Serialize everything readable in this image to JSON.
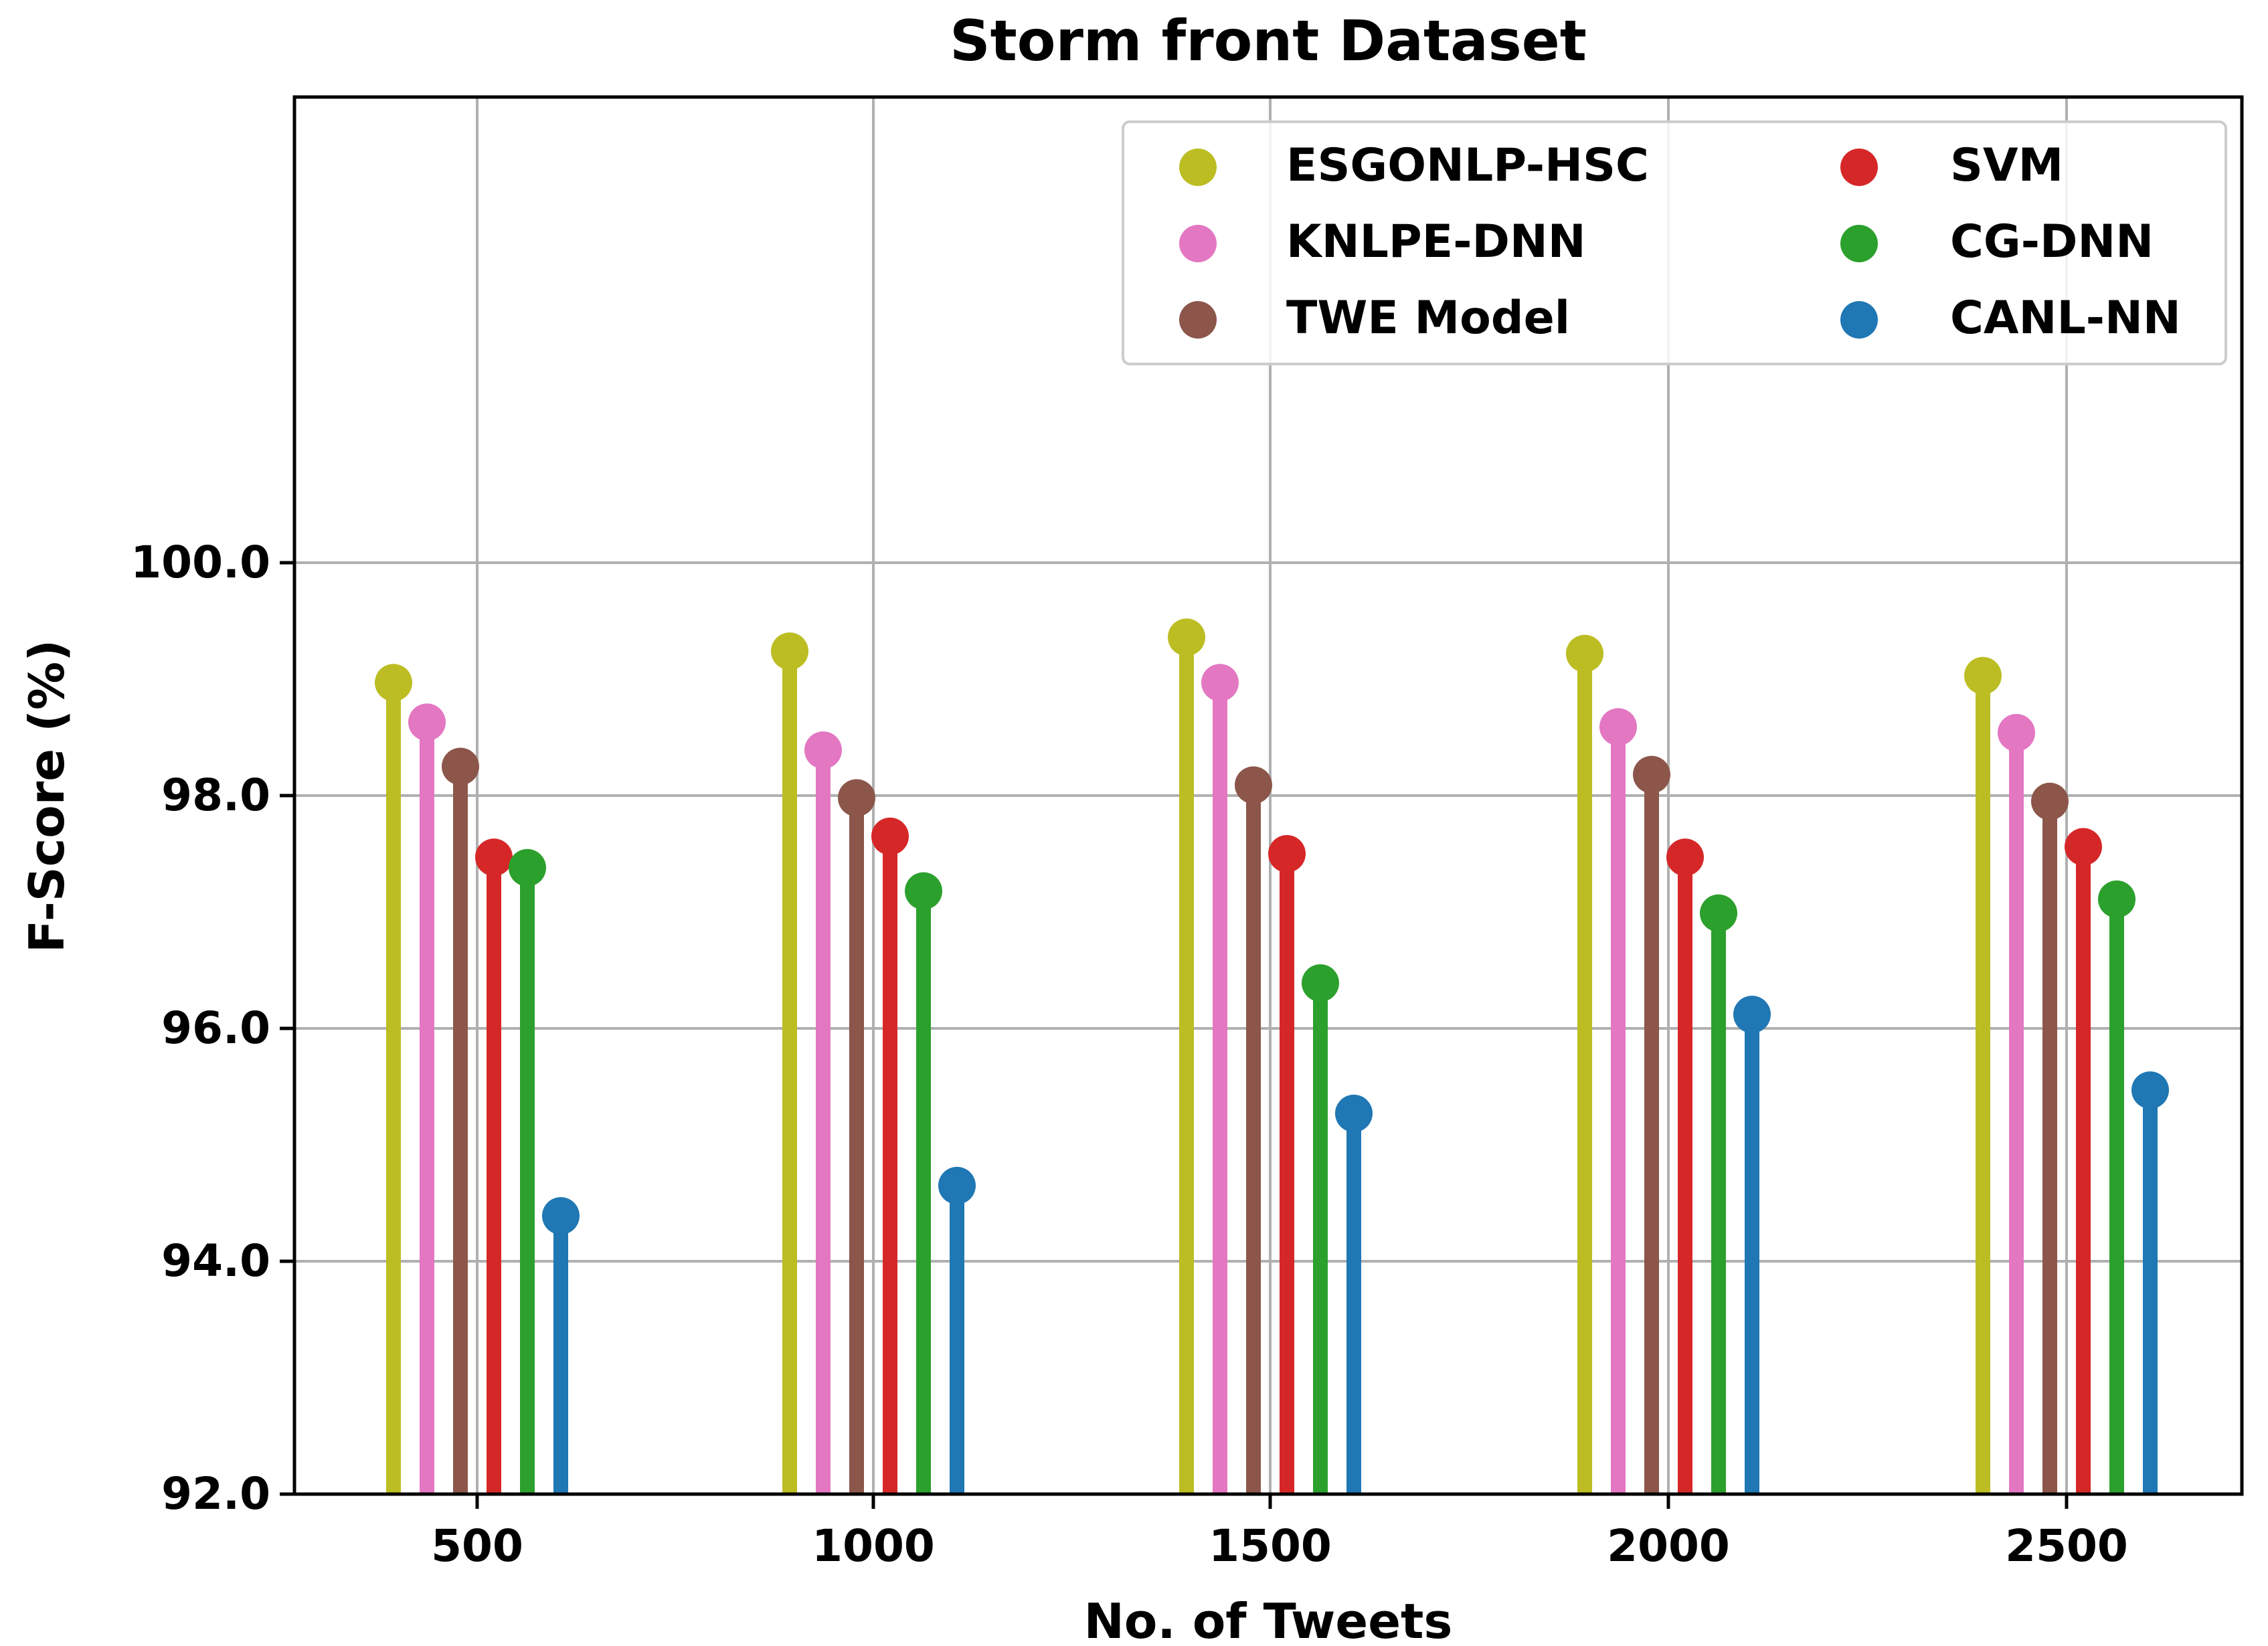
{
  "chart_data": {
    "type": "stem",
    "title": "Storm front Dataset",
    "xlabel": "No. of Tweets",
    "ylabel": "F-Score (%)",
    "categories": [
      "500",
      "1000",
      "1500",
      "2000",
      "2500"
    ],
    "ylim": [
      92.0,
      104.0
    ],
    "yticks": [
      "92.0",
      "94.0",
      "96.0",
      "98.0",
      "100.0"
    ],
    "grid": true,
    "legend_position": "top-right",
    "series": [
      {
        "name": "ESGONLP-HSC",
        "color": "#bcbd22",
        "values": [
          98.97,
          99.24,
          99.36,
          99.22,
          99.03
        ]
      },
      {
        "name": "KNLPE-DNN",
        "color": "#e377c2",
        "values": [
          98.63,
          98.39,
          98.97,
          98.59,
          98.54
        ]
      },
      {
        "name": "TWE Model",
        "color": "#8c564b",
        "values": [
          98.25,
          97.98,
          98.09,
          98.18,
          97.95
        ]
      },
      {
        "name": "SVM",
        "color": "#d62728",
        "values": [
          97.47,
          97.65,
          97.5,
          97.47,
          97.56
        ]
      },
      {
        "name": "CG-DNN",
        "color": "#2ca02c",
        "values": [
          97.38,
          97.18,
          96.39,
          96.99,
          97.11
        ]
      },
      {
        "name": "CANL-NN",
        "color": "#1f77b4",
        "values": [
          94.39,
          94.65,
          95.27,
          96.12,
          95.47
        ]
      }
    ]
  }
}
